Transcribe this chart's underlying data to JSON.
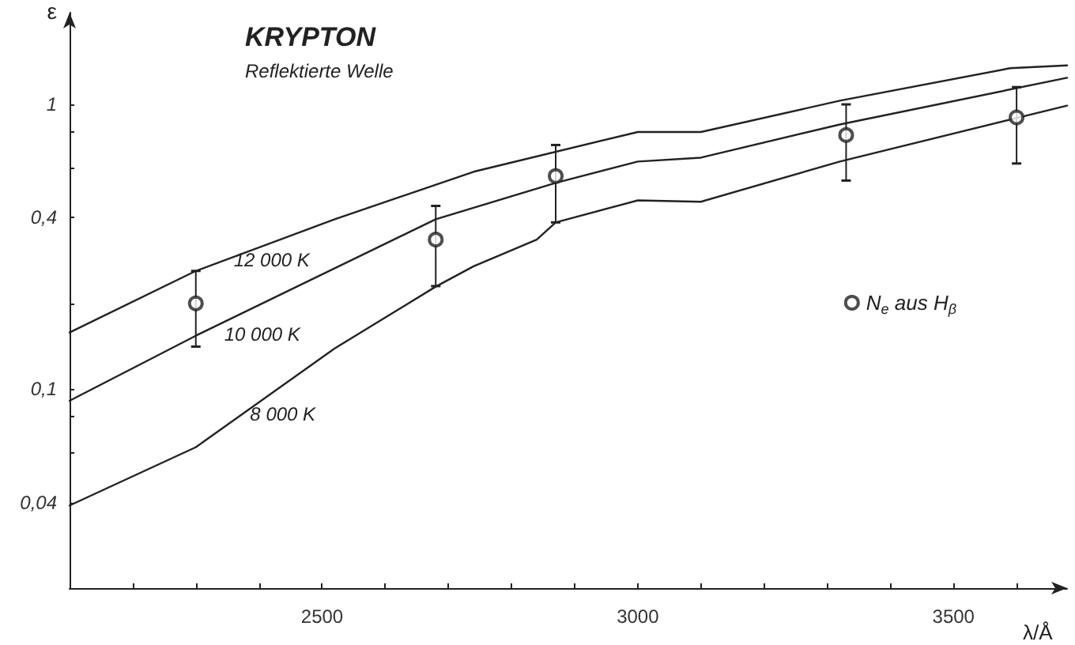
{
  "chart_data": {
    "type": "line",
    "title": "KRYPTON",
    "subtitle": "Reflektierte Welle",
    "xlabel": "λ/Å",
    "ylabel": "ε",
    "log": "y",
    "grid": false,
    "legend": "right",
    "line_style": "solid",
    "xlim": [
      2100,
      3680
    ],
    "xticks": [
      {
        "value": 2200,
        "label": null
      },
      {
        "value": 2300,
        "label": null
      },
      {
        "value": 2400,
        "label": null
      },
      2500,
      {
        "value": 2600,
        "label": null
      },
      {
        "value": 2700,
        "label": null
      },
      {
        "value": 2800,
        "label": null
      },
      {
        "value": 2900,
        "label": null
      },
      3000,
      {
        "value": 3100,
        "label": null
      },
      {
        "value": 3200,
        "label": null
      },
      {
        "value": 3300,
        "label": null
      },
      {
        "value": 3400,
        "label": null
      },
      3500,
      {
        "value": 3600,
        "label": null
      }
    ],
    "ylim": [
      0.02,
      2.1
    ],
    "yticks": [
      {
        "value": 0.04,
        "label": "0,04"
      },
      {
        "value": 0.06,
        "label": null
      },
      {
        "value": 0.08,
        "label": null
      },
      {
        "value": 0.1,
        "label": "0,1"
      },
      {
        "value": 0.2,
        "label": null
      },
      {
        "value": 0.4,
        "label": "0,4"
      },
      {
        "value": 0.6,
        "label": null
      },
      {
        "value": 0.8,
        "label": null
      },
      {
        "value": 1,
        "label": "1"
      }
    ],
    "series": [
      {
        "name": "12 000 K",
        "type": "line",
        "color": "#222222",
        "marker": "none",
        "x": [
          2100,
          2300,
          2520,
          2740,
          3000,
          3100,
          3320,
          3590,
          3680
        ],
        "values": [
          0.158,
          0.26,
          0.395,
          0.58,
          0.8,
          0.8,
          1.03,
          1.34,
          1.37
        ]
      },
      {
        "name": "10 000 K",
        "type": "line",
        "color": "#222222",
        "marker": "none",
        "x": [
          2100,
          2300,
          2680,
          2870,
          3000,
          3100,
          3320,
          3680
        ],
        "values": [
          0.091,
          0.154,
          0.395,
          0.53,
          0.63,
          0.65,
          0.85,
          1.24
        ]
      },
      {
        "name": "8 000 K",
        "type": "line",
        "color": "#222222",
        "marker": "none",
        "x": [
          2100,
          2300,
          2520,
          2680,
          2740,
          2840,
          2870,
          3000,
          3100,
          3320,
          3680
        ],
        "values": [
          0.039,
          0.0625,
          0.139,
          0.229,
          0.27,
          0.335,
          0.385,
          0.46,
          0.455,
          0.63,
          0.99
        ]
      },
      {
        "name": "N$_{e}$ aus H$_{β}$",
        "type": "scatter",
        "color": "#222222",
        "marker": "circle",
        "x": [
          2300,
          2680,
          2870,
          3330,
          3600
        ],
        "values": [
          0.2,
          0.335,
          0.56,
          0.78,
          0.9
        ],
        "errors": [
          [
            0.141,
            0.26
          ],
          [
            0.23,
            0.44
          ],
          [
            0.385,
            0.72
          ],
          [
            0.54,
            1.0
          ],
          [
            0.62,
            1.15
          ]
        ]
      }
    ]
  }
}
